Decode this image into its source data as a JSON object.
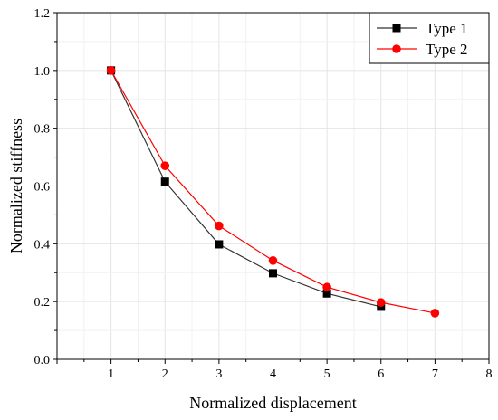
{
  "chart_data": {
    "type": "line",
    "title": "",
    "xlabel": "Normalized displacement",
    "ylabel": "Normalized stiffness",
    "xlim": [
      0,
      8
    ],
    "ylim": [
      0,
      1.2
    ],
    "xticks": [
      1,
      2,
      3,
      4,
      5,
      6,
      7,
      8
    ],
    "yticks": [
      0.0,
      0.2,
      0.4,
      0.6,
      0.8,
      1.0,
      1.2
    ],
    "grid": true,
    "legend_position": "top-right",
    "series": [
      {
        "name": "Type 1",
        "color": "#000000",
        "marker": "square",
        "x": [
          1,
          2,
          3,
          4,
          5,
          6
        ],
        "y": [
          1.0,
          0.615,
          0.398,
          0.298,
          0.228,
          0.182
        ]
      },
      {
        "name": "Type 2",
        "color": "#ff0000",
        "marker": "circle",
        "x": [
          1,
          2,
          3,
          4,
          5,
          6,
          7
        ],
        "y": [
          1.0,
          0.67,
          0.462,
          0.342,
          0.25,
          0.197,
          0.16
        ]
      }
    ]
  }
}
